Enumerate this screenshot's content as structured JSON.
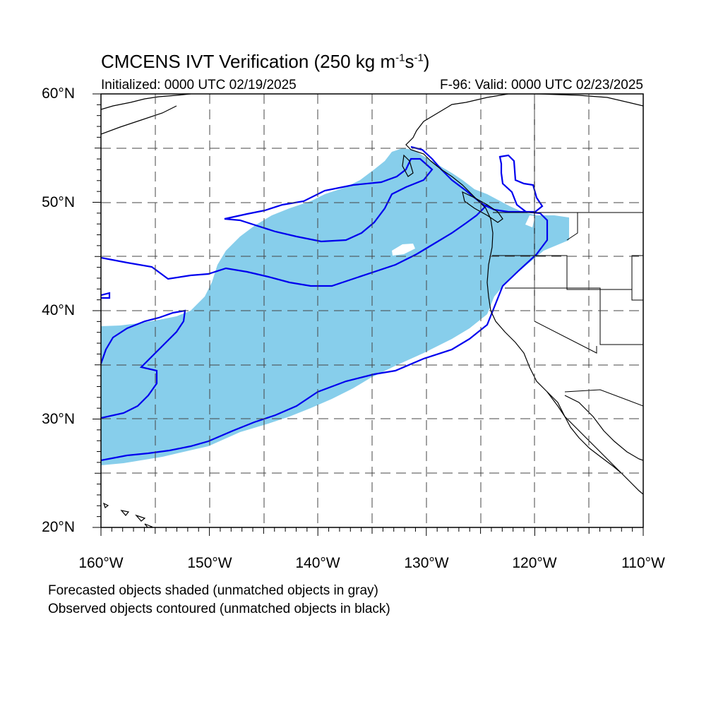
{
  "title": {
    "main": "CMCENS IVT Verification (250 kg m",
    "sup1": "-1",
    "mid": "s",
    "sup2": "-1",
    "end": ")"
  },
  "init_label": "Initialized: 0000 UTC 02/19/2025",
  "valid_label": "F-96: Valid: 0000 UTC 02/23/2025",
  "map": {
    "lon_range": [
      -160,
      -110
    ],
    "lat_range": [
      20,
      60
    ],
    "grid": "dashed every 5 degrees",
    "forecast_fill_color": "#87ceeb",
    "observed_contour_color": "#0000ee",
    "coastline_color": "#000000"
  },
  "lat_labels": [
    "60°N",
    "50°N",
    "40°N",
    "30°N",
    "20°N"
  ],
  "lon_labels": [
    "160°W",
    "150°W",
    "140°W",
    "130°W",
    "120°W",
    "110°W"
  ],
  "footer": {
    "line1": "Forecasted objects shaded (unmatched objects in gray)",
    "line2": "Observed objects contoured (unmatched objects in black)"
  }
}
